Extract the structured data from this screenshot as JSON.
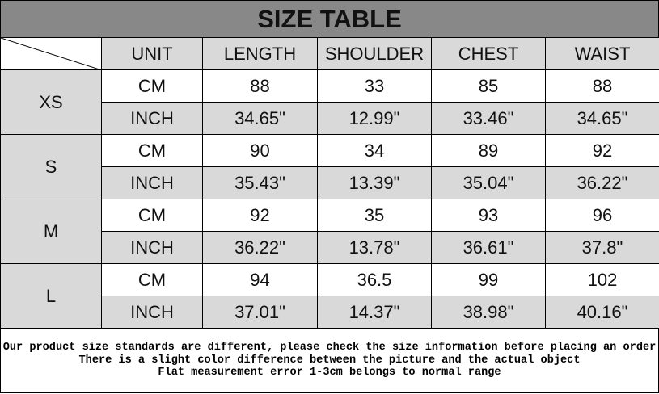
{
  "title": "SIZE TABLE",
  "columns": [
    "UNIT",
    "LENGTH",
    "SHOULDER",
    "CHEST",
    "WAIST"
  ],
  "sizes": [
    {
      "size": "XS",
      "cm": {
        "unit": "CM",
        "values": [
          "88",
          "33",
          "85",
          "88"
        ]
      },
      "inch": {
        "unit": "INCH",
        "values": [
          "34.65\"",
          "12.99\"",
          "33.46\"",
          "34.65\""
        ]
      }
    },
    {
      "size": "S",
      "cm": {
        "unit": "CM",
        "values": [
          "90",
          "34",
          "89",
          "92"
        ]
      },
      "inch": {
        "unit": "INCH",
        "values": [
          "35.43\"",
          "13.39\"",
          "35.04\"",
          "36.22\""
        ]
      }
    },
    {
      "size": "M",
      "cm": {
        "unit": "CM",
        "values": [
          "92",
          "35",
          "93",
          "96"
        ]
      },
      "inch": {
        "unit": "INCH",
        "values": [
          "36.22\"",
          "13.78\"",
          "36.61\"",
          "37.8\""
        ]
      }
    },
    {
      "size": "L",
      "cm": {
        "unit": "CM",
        "values": [
          "94",
          "36.5",
          "99",
          "102"
        ]
      },
      "inch": {
        "unit": "INCH",
        "values": [
          "37.01\"",
          "14.37\"",
          "38.98\"",
          "40.16\""
        ]
      }
    }
  ],
  "footer": [
    "Our product size standards are different, please check the size information before placing an order",
    "There is a slight color difference between the picture and the actual object",
    "Flat measurement error 1-3cm belongs to normal range"
  ],
  "colors": {
    "title_bg": "#888888",
    "shade": "#d9d9d9"
  }
}
